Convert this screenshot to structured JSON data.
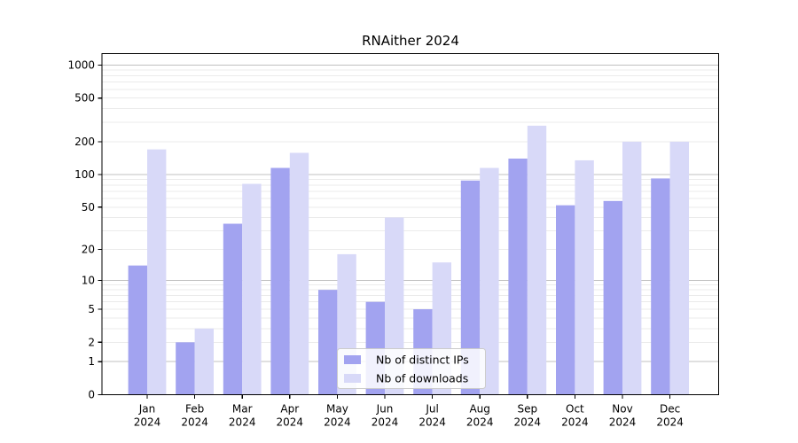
{
  "chart_data": {
    "type": "bar",
    "title": "RNAither 2024",
    "categories": [
      "Jan 2024",
      "Feb 2024",
      "Mar 2024",
      "Apr 2024",
      "May 2024",
      "Jun 2024",
      "Jul 2024",
      "Aug 2024",
      "Sep 2024",
      "Oct 2024",
      "Nov 2024",
      "Dec 2024"
    ],
    "series": [
      {
        "name": "Nb of distinct IPs",
        "color": "#a2a3f0",
        "values": [
          14,
          2,
          35,
          115,
          8,
          6,
          5,
          88,
          140,
          52,
          57,
          92
        ]
      },
      {
        "name": "Nb of downloads",
        "color": "#d8d9f8",
        "values": [
          170,
          3,
          82,
          158,
          18,
          40,
          15,
          115,
          280,
          135,
          200,
          200
        ]
      }
    ],
    "xlabel": "",
    "ylabel": "",
    "yscale": "log10(1+v)",
    "yticks": [
      1000,
      500,
      200,
      100,
      50,
      20,
      10,
      5,
      2,
      1,
      0
    ],
    "ylim": [
      0,
      1300
    ],
    "grid": true,
    "legend_position": "lower center",
    "colors": {
      "background": "#ffffff",
      "axis": "#000000",
      "major_grid": "#c0c0c0",
      "minor_grid": "#ebebeb",
      "legend_border": "#cccccc",
      "legend_fill": "rgba(255,255,255,0.85)"
    }
  }
}
